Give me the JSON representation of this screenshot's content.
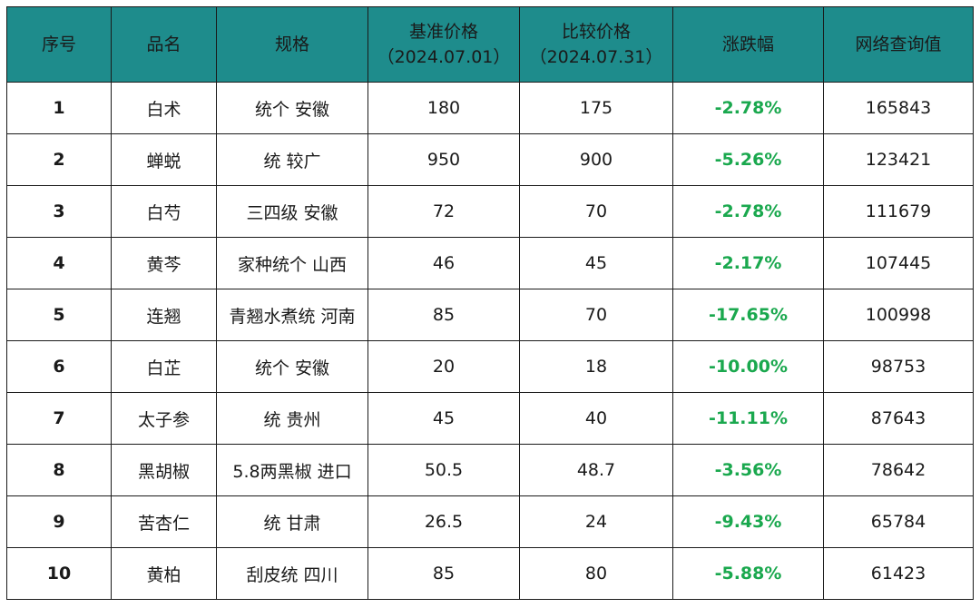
{
  "header": {
    "seq": "序号",
    "name": "品名",
    "spec": "规格",
    "base_price_label": "基准价格",
    "base_price_date": "（2024.07.01）",
    "compare_price_label": "比较价格",
    "compare_price_date": "（2024.07.31）",
    "change": "涨跌幅",
    "query": "网络查询值"
  },
  "colors": {
    "header_bg": "#1e8c8c",
    "change_text": "#1aa84e",
    "border": "#1a1a1a"
  },
  "rows": [
    {
      "seq": "1",
      "name": "白术",
      "spec": "统个 安徽",
      "base": "180",
      "compare": "175",
      "change": "-2.78%",
      "query": "165843"
    },
    {
      "seq": "2",
      "name": "蝉蜕",
      "spec": "统 较广",
      "base": "950",
      "compare": "900",
      "change": "-5.26%",
      "query": "123421"
    },
    {
      "seq": "3",
      "name": "白芍",
      "spec": "三四级 安徽",
      "base": "72",
      "compare": "70",
      "change": "-2.78%",
      "query": "111679"
    },
    {
      "seq": "4",
      "name": "黄芩",
      "spec": "家种统个 山西",
      "base": "46",
      "compare": "45",
      "change": "-2.17%",
      "query": "107445"
    },
    {
      "seq": "5",
      "name": "连翘",
      "spec": "青翘水煮统 河南",
      "base": "85",
      "compare": "70",
      "change": "-17.65%",
      "query": "100998"
    },
    {
      "seq": "6",
      "name": "白芷",
      "spec": "统个 安徽",
      "base": "20",
      "compare": "18",
      "change": "-10.00%",
      "query": "98753"
    },
    {
      "seq": "7",
      "name": "太子参",
      "spec": "统 贵州",
      "base": "45",
      "compare": "40",
      "change": "-11.11%",
      "query": "87643"
    },
    {
      "seq": "8",
      "name": "黑胡椒",
      "spec": "5.8两黑椒 进口",
      "base": "50.5",
      "compare": "48.7",
      "change": "-3.56%",
      "query": "78642"
    },
    {
      "seq": "9",
      "name": "苦杏仁",
      "spec": "统 甘肃",
      "base": "26.5",
      "compare": "24",
      "change": "-9.43%",
      "query": "65784"
    },
    {
      "seq": "10",
      "name": "黄柏",
      "spec": "刮皮统 四川",
      "base": "85",
      "compare": "80",
      "change": "-5.88%",
      "query": "61423"
    }
  ]
}
